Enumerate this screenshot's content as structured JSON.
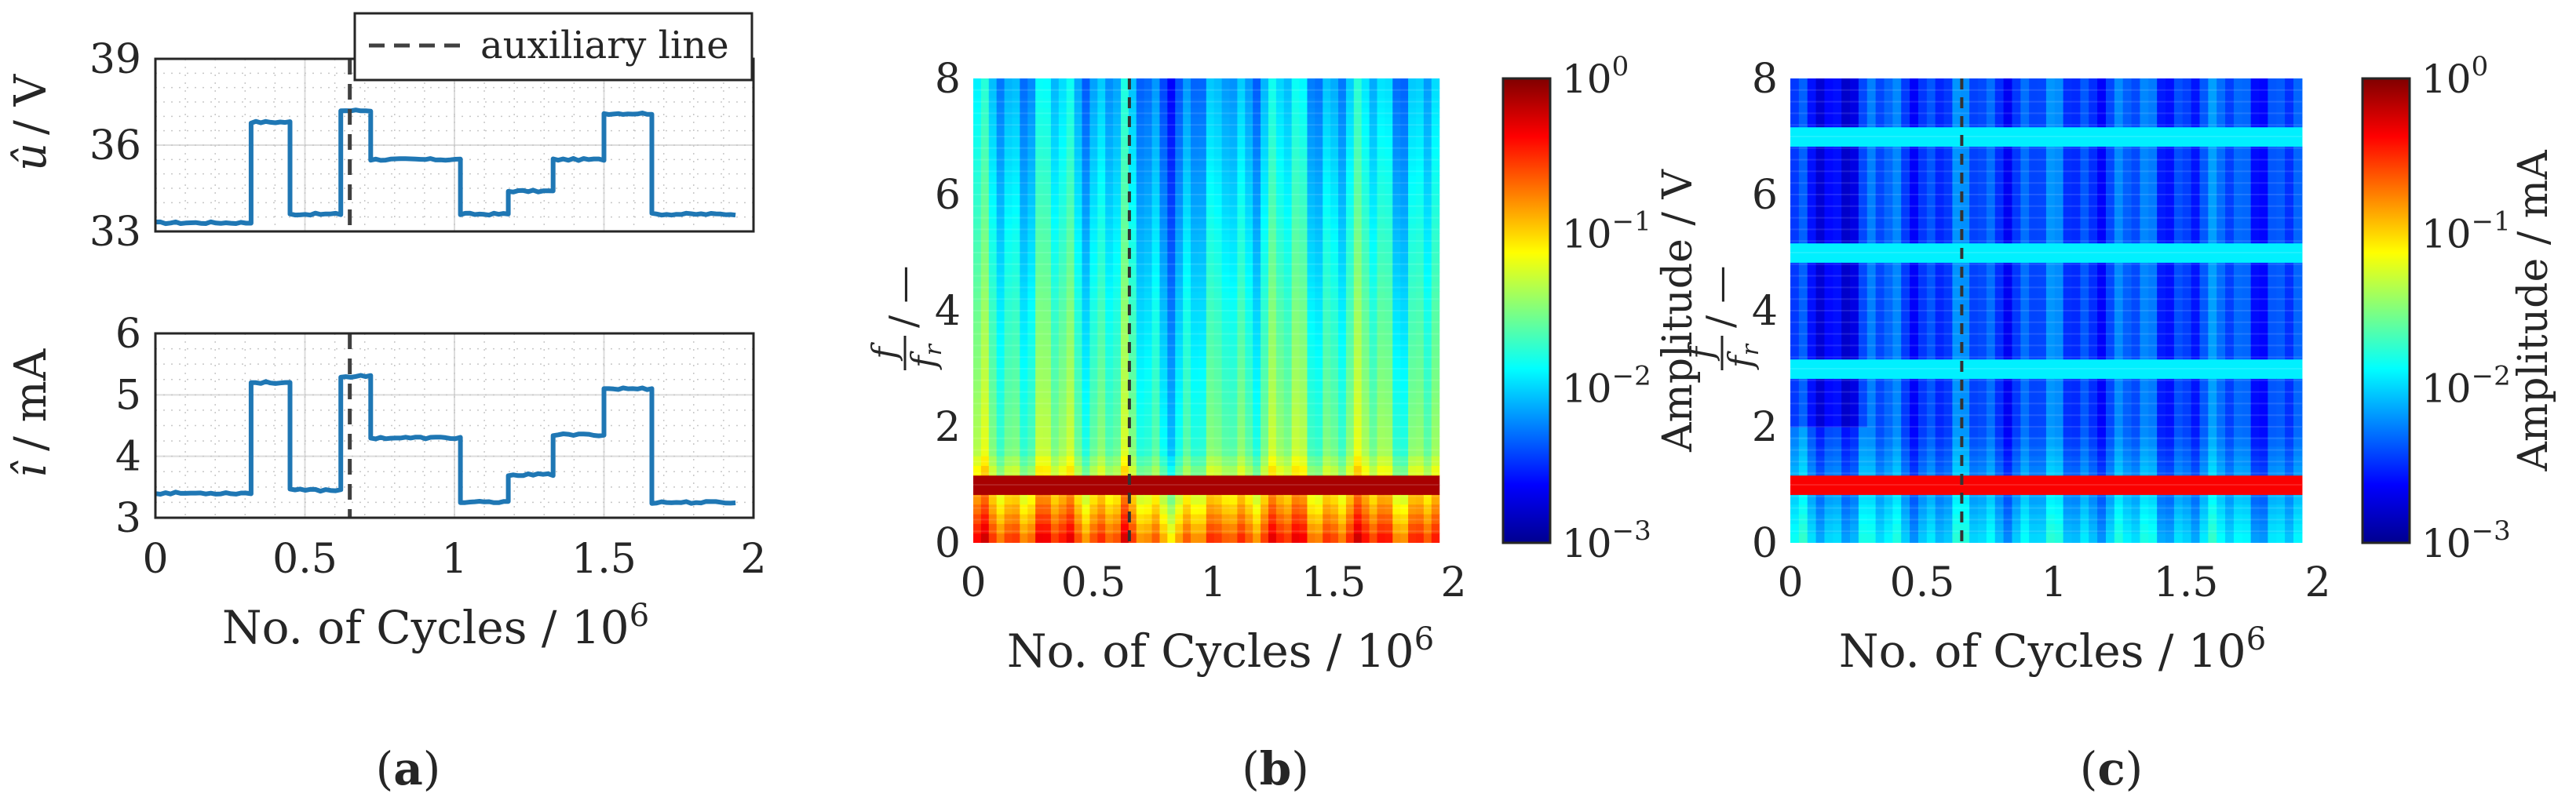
{
  "chart_data": [
    {
      "panel": "a-top",
      "type": "line",
      "ylabel_main": "û",
      "ylabel_unit": "/ V",
      "ylim": [
        33,
        39
      ],
      "yticks": [
        "33",
        "36",
        "39"
      ],
      "xlim": [
        0,
        2
      ],
      "grid": true,
      "color": "#1f77b4",
      "legend": {
        "label": "auxiliary line",
        "placement": "top-right"
      },
      "auxiliary_line_x": 0.65,
      "steps": [
        {
          "x0": 0.0,
          "x1": 0.32,
          "y": 33.3
        },
        {
          "x0": 0.32,
          "x1": 0.45,
          "y": 36.8
        },
        {
          "x0": 0.45,
          "x1": 0.62,
          "y": 33.6
        },
        {
          "x0": 0.62,
          "x1": 0.72,
          "y": 37.2
        },
        {
          "x0": 0.72,
          "x1": 1.02,
          "y": 35.5
        },
        {
          "x0": 1.02,
          "x1": 1.18,
          "y": 33.6
        },
        {
          "x0": 1.18,
          "x1": 1.33,
          "y": 34.4
        },
        {
          "x0": 1.33,
          "x1": 1.5,
          "y": 35.5
        },
        {
          "x0": 1.5,
          "x1": 1.66,
          "y": 37.1
        },
        {
          "x0": 1.66,
          "x1": 1.94,
          "y": 33.6
        }
      ]
    },
    {
      "panel": "a-bottom",
      "type": "line",
      "ylabel_main": "î",
      "ylabel_unit": "/ mA",
      "ylim": [
        3,
        6
      ],
      "yticks": [
        "3",
        "4",
        "5",
        "6"
      ],
      "xlim": [
        0,
        2
      ],
      "xticks": [
        "0",
        "0.5",
        "1",
        "1.5",
        "2"
      ],
      "xlabel_text": "No. of Cycles / 10",
      "xlabel_sup": "6",
      "grid": true,
      "color": "#1f77b4",
      "auxiliary_line_x": 0.65,
      "steps": [
        {
          "x0": 0.0,
          "x1": 0.32,
          "y": 3.4
        },
        {
          "x0": 0.32,
          "x1": 0.45,
          "y": 5.2
        },
        {
          "x0": 0.45,
          "x1": 0.62,
          "y": 3.45
        },
        {
          "x0": 0.62,
          "x1": 0.72,
          "y": 5.3
        },
        {
          "x0": 0.72,
          "x1": 1.02,
          "y": 4.3
        },
        {
          "x0": 1.02,
          "x1": 1.18,
          "y": 3.25
        },
        {
          "x0": 1.18,
          "x1": 1.33,
          "y": 3.7
        },
        {
          "x0": 1.33,
          "x1": 1.5,
          "y": 4.35
        },
        {
          "x0": 1.5,
          "x1": 1.66,
          "y": 5.1
        },
        {
          "x0": 1.66,
          "x1": 1.94,
          "y": 3.25
        }
      ]
    },
    {
      "panel": "b",
      "type": "heatmap",
      "ylabel_num": "f",
      "ylabel_den": "f",
      "ylabel_den_sub": "r",
      "ylabel_suffix": "/ —",
      "ylim": [
        0,
        8
      ],
      "yticks": [
        "0",
        "2",
        "4",
        "6",
        "8"
      ],
      "xlim": [
        0,
        2
      ],
      "xticks": [
        "0",
        "0.5",
        "1",
        "1.5",
        "2"
      ],
      "xlabel_text": "No. of Cycles / 10",
      "xlabel_sup": "6",
      "data_xmax": 1.94,
      "auxiliary_line_x": 0.65,
      "colorbar_label": "Amplitude / V",
      "colorbar_ticks": [
        {
          "base": "10",
          "exp": "0"
        },
        {
          "base": "10",
          "exp": "−1"
        },
        {
          "base": "10",
          "exp": "−2"
        },
        {
          "base": "10",
          "exp": "−3"
        }
      ],
      "colorbar_range_log10": [
        -3,
        0
      ],
      "harmonic_ridges_f_over_fr": [
        1
      ]
    },
    {
      "panel": "c",
      "type": "heatmap",
      "ylabel_num": "f",
      "ylabel_den": "f",
      "ylabel_den_sub": "r",
      "ylabel_suffix": "/ —",
      "ylim": [
        0,
        8
      ],
      "yticks": [
        "0",
        "2",
        "4",
        "6",
        "8"
      ],
      "xlim": [
        0,
        2
      ],
      "xticks": [
        "0",
        "0.5",
        "1",
        "1.5",
        "2"
      ],
      "xlabel_text": "No. of Cycles / 10",
      "xlabel_sup": "6",
      "data_xmax": 1.94,
      "auxiliary_line_x": 0.65,
      "colorbar_label": "Amplitude / mA",
      "colorbar_ticks": [
        {
          "base": "10",
          "exp": "0"
        },
        {
          "base": "10",
          "exp": "−1"
        },
        {
          "base": "10",
          "exp": "−2"
        },
        {
          "base": "10",
          "exp": "−3"
        }
      ],
      "colorbar_range_log10": [
        -3,
        0
      ],
      "harmonic_ridges_f_over_fr": [
        1,
        3,
        5,
        7
      ]
    }
  ],
  "captions": {
    "a": "a",
    "b": "b",
    "c": "c"
  }
}
